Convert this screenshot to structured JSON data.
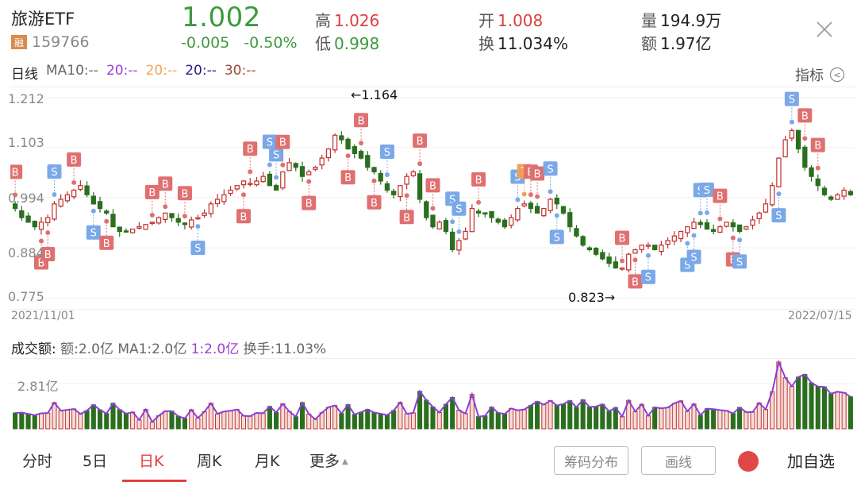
{
  "header": {
    "name": "旅游ETF",
    "margin_badge": "融",
    "code": "159766",
    "price": "1.002",
    "change": "-0.005",
    "change_pct": "-0.50%",
    "high_label": "高",
    "high": "1.026",
    "low_label": "低",
    "low": "0.998",
    "open_label": "开",
    "open": "1.008",
    "turnover_label": "换",
    "turnover": "11.034%",
    "volume_label": "量",
    "volume": "194.9万",
    "amount_label": "额",
    "amount": "1.97亿",
    "close_icon": "close-icon"
  },
  "legend": {
    "title": "日线",
    "ma10": "MA10:--",
    "ma20a": "20:--",
    "ma20b": "20:--",
    "ma20c": "20:--",
    "ma30": "30:--",
    "indicator_label": "指标",
    "indicator_icon": "chevron-left-circle-icon"
  },
  "chart": {
    "y_labels": [
      "1.212",
      "1.103",
      "0.994",
      "0.884",
      "0.775"
    ],
    "x_start": "2021/11/01",
    "x_end": "2022/07/15",
    "max_annotation": "←1.164",
    "min_annotation": "0.823→",
    "colors": {
      "up": "#c0302c",
      "down": "#2a6e1e",
      "buy_marker": "#e07070",
      "sell_marker": "#7aa8e8",
      "t_marker": "#f0a055"
    }
  },
  "volume": {
    "title": "成交额:",
    "amount": "额:2.0亿",
    "ma1": "MA1:2.0亿",
    "line1": "1:2.0亿",
    "turnover": "换手:11.03%",
    "y_label": "2.81亿"
  },
  "bottom": {
    "tabs": [
      {
        "label": "分时",
        "active": false
      },
      {
        "label": "5日",
        "active": false
      },
      {
        "label": "日K",
        "active": true
      },
      {
        "label": "周K",
        "active": false
      },
      {
        "label": "月K",
        "active": false
      },
      {
        "label": "更多",
        "active": false
      }
    ],
    "chip_button": "筹码分布",
    "draw_button": "画线",
    "add_watchlist": "加自选"
  },
  "chart_data": {
    "type": "candlestick",
    "title": "旅游ETF 日线",
    "x_range": [
      "2021/11/01",
      "2022/07/15"
    ],
    "y_ticks": [
      1.212,
      1.103,
      0.994,
      0.884,
      0.775
    ],
    "ylim": [
      0.775,
      1.212
    ],
    "max": {
      "value": 1.164,
      "label": "←1.164"
    },
    "min": {
      "value": 0.823,
      "label": "0.823→"
    },
    "approx_closes": [
      0.97,
      0.95,
      0.94,
      0.93,
      0.94,
      0.95,
      0.98,
      0.99,
      1.0,
      1.01,
      1.02,
      1.0,
      0.98,
      0.97,
      0.96,
      0.93,
      0.92,
      0.92,
      0.925,
      0.93,
      0.935,
      0.94,
      0.95,
      0.96,
      0.95,
      0.94,
      0.935,
      0.945,
      0.95,
      0.96,
      0.98,
      0.99,
      1.0,
      1.01,
      1.02,
      1.03,
      1.025,
      1.03,
      1.04,
      1.02,
      1.01,
      1.05,
      1.07,
      1.06,
      1.04,
      1.05,
      1.06,
      1.08,
      1.1,
      1.13,
      1.12,
      1.1,
      1.09,
      1.08,
      1.06,
      1.05,
      1.03,
      1.01,
      1.0,
      1.02,
      1.04,
      1.05,
      0.99,
      0.95,
      0.93,
      0.94,
      0.92,
      0.88,
      0.9,
      0.92,
      0.97,
      0.96,
      0.96,
      0.95,
      0.94,
      0.93,
      0.95,
      0.97,
      0.98,
      0.97,
      0.96,
      0.97,
      0.99,
      0.98,
      0.96,
      0.93,
      0.91,
      0.89,
      0.88,
      0.87,
      0.86,
      0.85,
      0.84,
      0.84,
      0.87,
      0.88,
      0.89,
      0.89,
      0.88,
      0.89,
      0.9,
      0.91,
      0.92,
      0.93,
      0.94,
      0.935,
      0.925,
      0.92,
      0.93,
      0.94,
      0.93,
      0.92,
      0.93,
      0.945,
      0.96,
      0.98,
      1.02,
      1.08,
      1.12,
      1.14,
      1.1,
      1.06,
      1.04,
      1.02,
      1.0,
      0.99,
      1.0,
      1.01,
      1.0
    ]
  },
  "volume_data": {
    "type": "bar",
    "y_label": "2.81亿",
    "series_line": "MA1 (purple)"
  }
}
